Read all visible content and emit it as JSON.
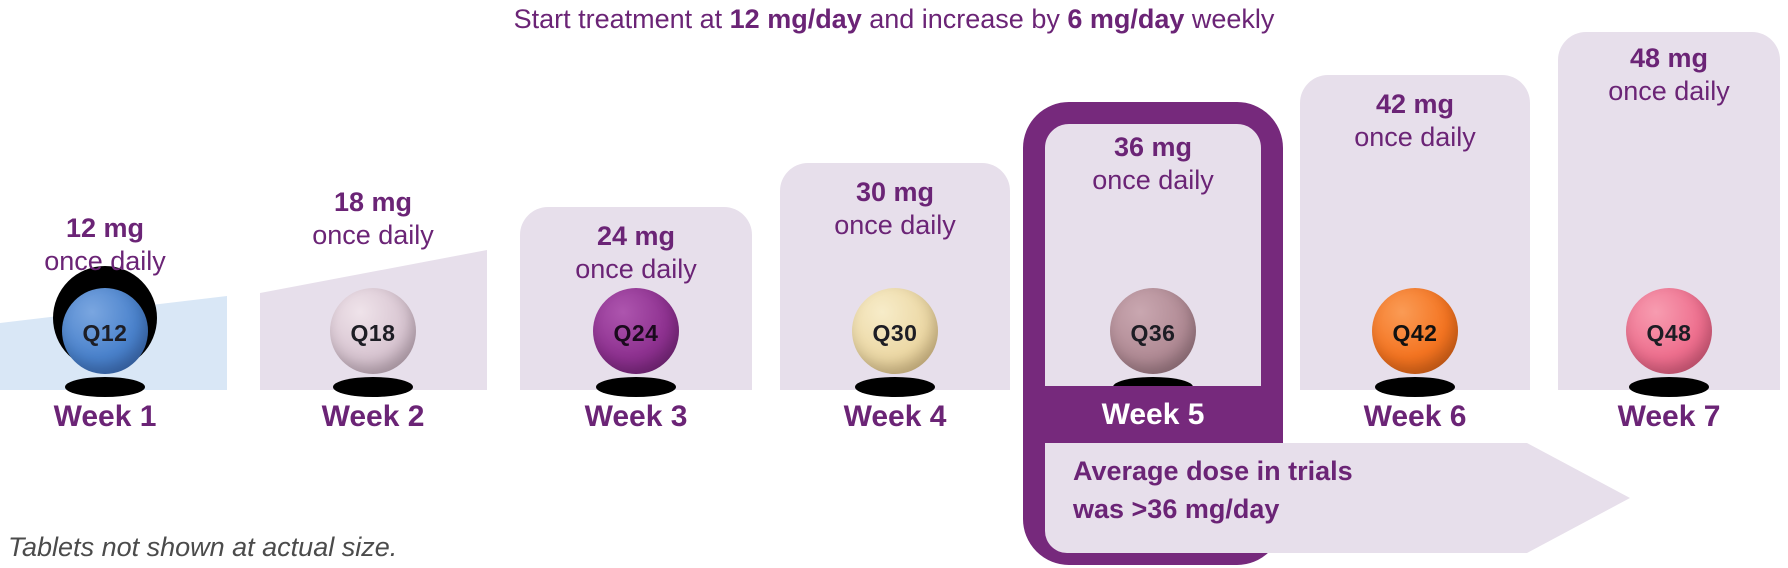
{
  "title": {
    "part1": "Start treatment at ",
    "bold1": "12 mg/day",
    "part2": " and increase by ",
    "bold2": "6 mg/day",
    "part3": " weekly"
  },
  "footnote": "Tablets not shown at actual size.",
  "average_banner": {
    "line1": "Average dose in trials",
    "line2": "was >36 mg/day"
  },
  "weeks": [
    {
      "label": "Week 1",
      "dose": "12 mg",
      "frequency": "once daily",
      "pill_label": "Q12",
      "pill_color": "#4a82cc",
      "pill_highlight": "#7aa6e0",
      "pill_shadow": "#335fa8",
      "highlighted": false
    },
    {
      "label": "Week 2",
      "dose": "18 mg",
      "frequency": "once daily",
      "pill_label": "Q18",
      "pill_color": "#d8c5d1",
      "pill_highlight": "#efe3ea",
      "pill_shadow": "#b49cab",
      "highlighted": false
    },
    {
      "label": "Week 3",
      "dose": "24 mg",
      "frequency": "once daily",
      "pill_label": "Q24",
      "pill_color": "#8e3190",
      "pill_highlight": "#ad55ae",
      "pill_shadow": "#6c1f70",
      "highlighted": false
    },
    {
      "label": "Week 4",
      "dose": "30 mg",
      "frequency": "once daily",
      "pill_label": "Q30",
      "pill_color": "#ecd8a5",
      "pill_highlight": "#f7ecc9",
      "pill_shadow": "#d1b277",
      "highlighted": false
    },
    {
      "label": "Week 5",
      "dose": "36 mg",
      "frequency": "once daily",
      "pill_label": "Q36",
      "pill_color": "#b18b95",
      "pill_highlight": "#c9a7b0",
      "pill_shadow": "#8f6c77",
      "highlighted": true
    },
    {
      "label": "Week 6",
      "dose": "42 mg",
      "frequency": "once daily",
      "pill_label": "Q42",
      "pill_color": "#f47421",
      "pill_highlight": "#fa9b55",
      "pill_shadow": "#cf5a10",
      "highlighted": false
    },
    {
      "label": "Week 7",
      "dose": "48 mg",
      "frequency": "once daily",
      "pill_label": "Q48",
      "pill_color": "#ee6f8e",
      "pill_highlight": "#f79cb0",
      "pill_shadow": "#d05073",
      "highlighted": false
    }
  ],
  "colors": {
    "purple_text": "#6b2476",
    "highlight_purple": "#76297c",
    "lavender": "#e7dfeb",
    "week1_blue": "#d9e7f6",
    "footnote_gray": "#4b4b4b",
    "week5_label_white": "#ffffff"
  }
}
